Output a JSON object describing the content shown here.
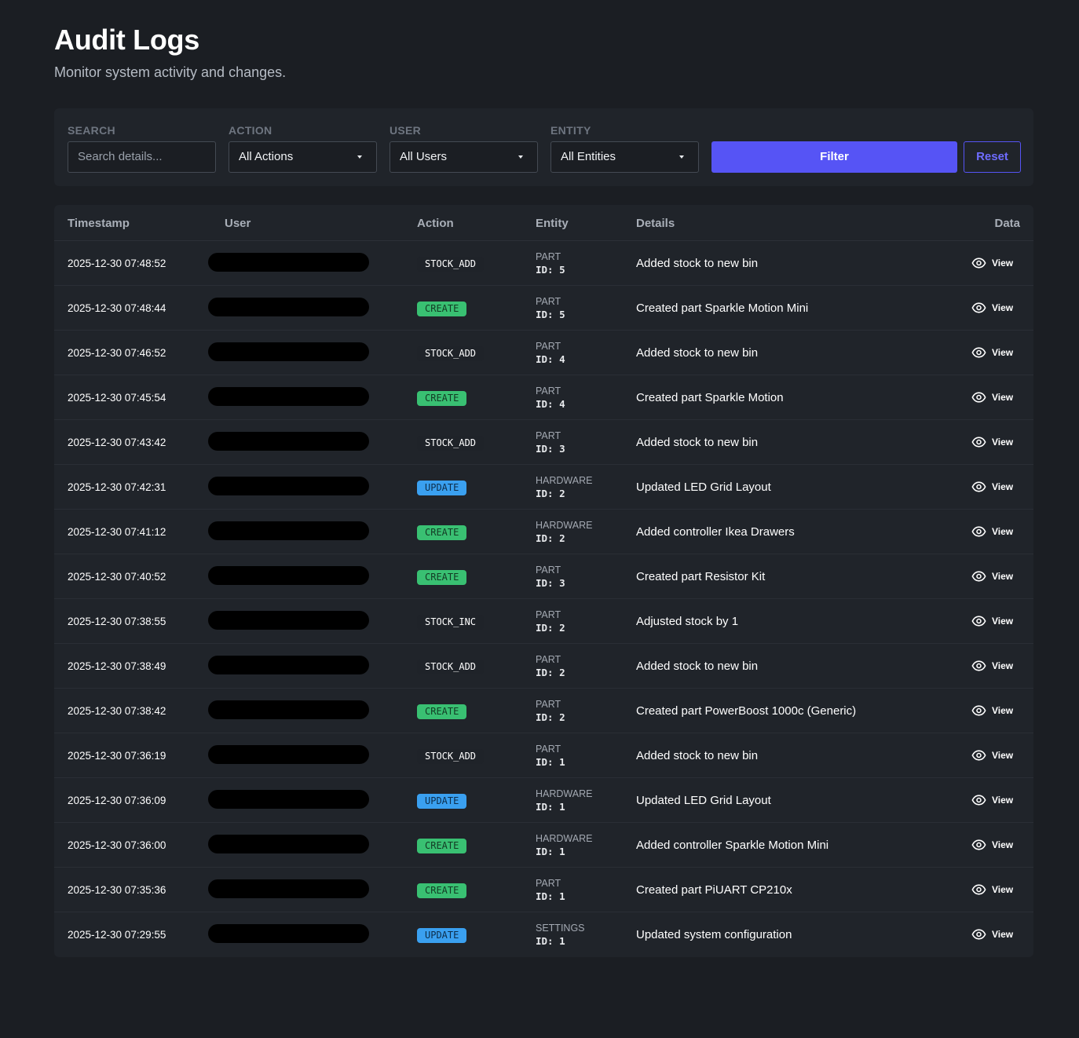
{
  "header": {
    "title": "Audit Logs",
    "subtitle": "Monitor system activity and changes."
  },
  "filters": {
    "search": {
      "label": "SEARCH",
      "placeholder": "Search details..."
    },
    "action": {
      "label": "ACTION",
      "value": "All Actions"
    },
    "user": {
      "label": "USER",
      "value": "All Users"
    },
    "entity": {
      "label": "ENTITY",
      "value": "All Entities"
    },
    "filter_button": "Filter",
    "reset_button": "Reset"
  },
  "table": {
    "columns": {
      "timestamp": "Timestamp",
      "user": "User",
      "action": "Action",
      "entity": "Entity",
      "details": "Details",
      "data": "Data"
    },
    "view_label": "View",
    "rows": [
      {
        "timestamp": "2025-12-30 07:48:52",
        "action": "STOCK_ADD",
        "entity_type": "PART",
        "entity_id": "ID: 5",
        "details": "Added stock to new bin"
      },
      {
        "timestamp": "2025-12-30 07:48:44",
        "action": "CREATE",
        "entity_type": "PART",
        "entity_id": "ID: 5",
        "details": "Created part Sparkle Motion Mini"
      },
      {
        "timestamp": "2025-12-30 07:46:52",
        "action": "STOCK_ADD",
        "entity_type": "PART",
        "entity_id": "ID: 4",
        "details": "Added stock to new bin"
      },
      {
        "timestamp": "2025-12-30 07:45:54",
        "action": "CREATE",
        "entity_type": "PART",
        "entity_id": "ID: 4",
        "details": "Created part Sparkle Motion"
      },
      {
        "timestamp": "2025-12-30 07:43:42",
        "action": "STOCK_ADD",
        "entity_type": "PART",
        "entity_id": "ID: 3",
        "details": "Added stock to new bin"
      },
      {
        "timestamp": "2025-12-30 07:42:31",
        "action": "UPDATE",
        "entity_type": "HARDWARE",
        "entity_id": "ID: 2",
        "details": "Updated LED Grid Layout"
      },
      {
        "timestamp": "2025-12-30 07:41:12",
        "action": "CREATE",
        "entity_type": "HARDWARE",
        "entity_id": "ID: 2",
        "details": "Added controller Ikea Drawers"
      },
      {
        "timestamp": "2025-12-30 07:40:52",
        "action": "CREATE",
        "entity_type": "PART",
        "entity_id": "ID: 3",
        "details": "Created part Resistor Kit"
      },
      {
        "timestamp": "2025-12-30 07:38:55",
        "action": "STOCK_INC",
        "entity_type": "PART",
        "entity_id": "ID: 2",
        "details": "Adjusted stock by 1"
      },
      {
        "timestamp": "2025-12-30 07:38:49",
        "action": "STOCK_ADD",
        "entity_type": "PART",
        "entity_id": "ID: 2",
        "details": "Added stock to new bin"
      },
      {
        "timestamp": "2025-12-30 07:38:42",
        "action": "CREATE",
        "entity_type": "PART",
        "entity_id": "ID: 2",
        "details": "Created part PowerBoost 1000c (Generic)"
      },
      {
        "timestamp": "2025-12-30 07:36:19",
        "action": "STOCK_ADD",
        "entity_type": "PART",
        "entity_id": "ID: 1",
        "details": "Added stock to new bin"
      },
      {
        "timestamp": "2025-12-30 07:36:09",
        "action": "UPDATE",
        "entity_type": "HARDWARE",
        "entity_id": "ID: 1",
        "details": "Updated LED Grid Layout"
      },
      {
        "timestamp": "2025-12-30 07:36:00",
        "action": "CREATE",
        "entity_type": "HARDWARE",
        "entity_id": "ID: 1",
        "details": "Added controller Sparkle Motion Mini"
      },
      {
        "timestamp": "2025-12-30 07:35:36",
        "action": "CREATE",
        "entity_type": "PART",
        "entity_id": "ID: 1",
        "details": "Created part PiUART CP210x"
      },
      {
        "timestamp": "2025-12-30 07:29:55",
        "action": "UPDATE",
        "entity_type": "SETTINGS",
        "entity_id": "ID: 1",
        "details": "Updated system configuration"
      }
    ]
  },
  "colors": {
    "accent": "#5654f5",
    "create_badge": "#39c072",
    "update_badge": "#3aa0f0",
    "background": "#1b1e23",
    "panel": "#20242a"
  },
  "icons": {
    "view": "eye-icon",
    "dropdown": "chevron-down-icon"
  }
}
